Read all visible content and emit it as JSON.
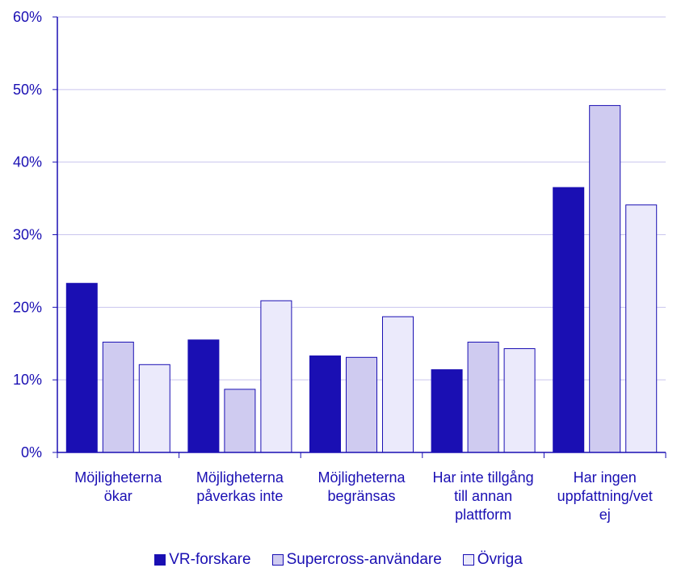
{
  "chart_data": {
    "type": "bar",
    "title": "",
    "xlabel": "",
    "ylabel": "",
    "ylim": [
      0,
      60
    ],
    "y_ticks": [
      "0%",
      "10%",
      "20%",
      "30%",
      "40%",
      "50%",
      "60%"
    ],
    "y_tick_values": [
      0,
      10,
      20,
      30,
      40,
      50,
      60
    ],
    "grid": true,
    "legend_position": "bottom",
    "categories": [
      [
        "Möjligheterna",
        "ökar"
      ],
      [
        "Möjligheterna",
        "påverkas inte"
      ],
      [
        "Möjligheterna",
        "begränsas"
      ],
      [
        "Har inte tillgång",
        "till annan",
        "plattform"
      ],
      [
        "Har ingen",
        "uppfattning/vet",
        "ej"
      ]
    ],
    "series": [
      {
        "name": "VR-forskare",
        "color": "#1a0fb3",
        "values": [
          23.3,
          15.5,
          13.3,
          11.4,
          36.5
        ]
      },
      {
        "name": "Supercross-användare",
        "color": "#cfcbf0",
        "values": [
          15.2,
          8.7,
          13.1,
          15.2,
          47.8
        ]
      },
      {
        "name": "Övriga",
        "color": "#ebeafb",
        "values": [
          12.1,
          20.9,
          18.7,
          14.3,
          34.1
        ]
      }
    ],
    "colors": {
      "axis": "#1a0fb3",
      "grid": "#c9c5ee",
      "text": "#1a0fb3",
      "bar_stroke": "#1a0fb3"
    }
  }
}
